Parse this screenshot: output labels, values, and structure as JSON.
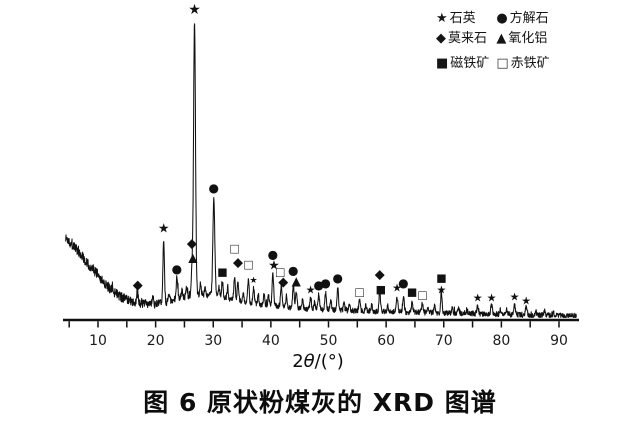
{
  "figure": {
    "caption": "图 6  原状粉煤灰的 XRD 图谱",
    "background_color": "#ffffff",
    "ink_color": "#111111"
  },
  "legend": {
    "position": "top-right",
    "items": [
      {
        "id": "quartz",
        "symbol": "★",
        "label": "石英"
      },
      {
        "id": "calcite",
        "symbol": "●",
        "label": "方解石"
      },
      {
        "id": "mullite",
        "symbol": "◆",
        "label": "莫来石"
      },
      {
        "id": "alumina",
        "symbol": "▲",
        "label": "氧化铝"
      },
      {
        "id": "magnetite",
        "symbol": "■",
        "label": "磁铁矿"
      },
      {
        "id": "hematite",
        "symbol": "□",
        "label": "赤铁矿"
      }
    ]
  },
  "chart_data": {
    "type": "line",
    "title": "",
    "xlabel": "2θ/(°)",
    "ylabel": "",
    "x_range": [
      5,
      90
    ],
    "x_ticks_labeled": [
      10,
      20,
      30,
      40,
      50,
      60,
      70,
      80,
      90
    ],
    "x_minor_tick_step": 5,
    "ylim": [
      0,
      105
    ],
    "grid": false,
    "legend_position": "top-right",
    "phases": [
      {
        "symbol": "★",
        "mineral": "石英"
      },
      {
        "symbol": "●",
        "mineral": "方解石"
      },
      {
        "symbol": "◆",
        "mineral": "莫来石"
      },
      {
        "symbol": "▲",
        "mineral": "氧化铝"
      },
      {
        "symbol": "■",
        "mineral": "磁铁矿"
      },
      {
        "symbol": "□",
        "mineral": "赤铁矿"
      }
    ],
    "baseline_points": [
      [
        4.4,
        27
      ],
      [
        5,
        26
      ],
      [
        6.5,
        23
      ],
      [
        8,
        19
      ],
      [
        10,
        14.5
      ],
      [
        12,
        10
      ],
      [
        14,
        7
      ],
      [
        16,
        5.5
      ],
      [
        18,
        4.6
      ],
      [
        20,
        4.6
      ],
      [
        22,
        5.4
      ],
      [
        24,
        6.6
      ],
      [
        26,
        7.6
      ],
      [
        28,
        8.0
      ],
      [
        30,
        7.6
      ],
      [
        32,
        6.8
      ],
      [
        34,
        6.0
      ],
      [
        36,
        5.2
      ],
      [
        38,
        4.6
      ],
      [
        40,
        4.2
      ],
      [
        43,
        3.6
      ],
      [
        46,
        3.2
      ],
      [
        50,
        2.8
      ],
      [
        54,
        2.5
      ],
      [
        58,
        2.3
      ],
      [
        62,
        2.1
      ],
      [
        66,
        1.9
      ],
      [
        70,
        1.7
      ],
      [
        75,
        1.5
      ],
      [
        80,
        1.3
      ],
      [
        85,
        1.0
      ],
      [
        90,
        0.8
      ],
      [
        93,
        0.7
      ]
    ],
    "noise": {
      "seed": 1337,
      "amplitude_low_angle": 1.85,
      "amplitude_high_angle": 0.9
    },
    "peaks": [
      {
        "two_theta": 16.9,
        "intensity": 8,
        "phase": "莫来石",
        "markers": [
          {
            "symbol": "◆",
            "height": 11
          }
        ]
      },
      {
        "two_theta": 21.4,
        "intensity": 27,
        "phase": "石英",
        "markers": [
          {
            "symbol": "★",
            "height": 30
          }
        ]
      },
      {
        "two_theta": 23.7,
        "intensity": 13.5,
        "phase": "方解石",
        "markers": [
          {
            "symbol": "●",
            "height": 16.5
          }
        ]
      },
      {
        "two_theta": 26.3,
        "intensity": 16,
        "phase": "莫来石/氧化铝",
        "markers": [
          {
            "symbol": "◆",
            "height": 25
          },
          {
            "symbol": "▲",
            "height": 20.5,
            "dx": 1
          }
        ]
      },
      {
        "two_theta": 26.75,
        "intensity": 100,
        "phase": "石英",
        "markers": [
          {
            "symbol": "★",
            "height": 104,
            "size": 14
          }
        ]
      },
      {
        "two_theta": 30.1,
        "intensity": 40.5,
        "phase": "方解石",
        "markers": [
          {
            "symbol": "●",
            "height": 44
          }
        ]
      },
      {
        "two_theta": 31.6,
        "intensity": 12,
        "phase": "磁铁矿",
        "markers": [
          {
            "symbol": "■",
            "height": 15.5
          }
        ]
      },
      {
        "two_theta": 33.7,
        "intensity": 13.5,
        "phase": "赤铁矿",
        "markers": [
          {
            "symbol": "□",
            "height": 23.5
          }
        ]
      },
      {
        "two_theta": 34.3,
        "intensity": 12,
        "phase": "莫来石",
        "markers": [
          {
            "symbol": "◆",
            "height": 18.5
          }
        ]
      },
      {
        "two_theta": 36.1,
        "intensity": 13,
        "phase": "赤铁矿",
        "markers": [
          {
            "symbol": "□",
            "height": 18
          }
        ]
      },
      {
        "two_theta": 37.0,
        "intensity": 10,
        "phase": "石英",
        "markers": [
          {
            "symbol": "★",
            "height": 12.5,
            "size": 9
          }
        ]
      },
      {
        "two_theta": 40.35,
        "intensity": 15,
        "phase": "方解石/石英",
        "markers": [
          {
            "symbol": "●",
            "height": 21.5
          },
          {
            "symbol": "★",
            "height": 17.5,
            "dx": 1
          }
        ]
      },
      {
        "two_theta": 41.8,
        "intensity": 11,
        "phase": "赤铁矿/莫来石",
        "markers": [
          {
            "symbol": "□",
            "height": 15.5,
            "dx": -1
          },
          {
            "symbol": "◆",
            "height": 12,
            "dx": 2
          }
        ]
      },
      {
        "two_theta": 43.9,
        "intensity": 11.5,
        "phase": "方解石",
        "markers": [
          {
            "symbol": "●",
            "height": 16
          }
        ]
      },
      {
        "two_theta": 44.4,
        "intensity": 9,
        "phase": "氧化铝",
        "markers": [
          {
            "symbol": "▲",
            "height": 12.5
          }
        ]
      },
      {
        "two_theta": 46.9,
        "intensity": 7,
        "phase": "石英",
        "markers": [
          {
            "symbol": "★",
            "height": 9.5,
            "size": 11
          }
        ]
      },
      {
        "two_theta": 48.3,
        "intensity": 8,
        "phase": "方解石",
        "markers": [
          {
            "symbol": "●",
            "height": 11.2
          }
        ]
      },
      {
        "two_theta": 49.5,
        "intensity": 8.5,
        "phase": "方解石",
        "markers": [
          {
            "symbol": "●",
            "height": 11.8
          }
        ]
      },
      {
        "two_theta": 51.6,
        "intensity": 10,
        "phase": "方解石",
        "markers": [
          {
            "symbol": "●",
            "height": 13.5
          }
        ]
      },
      {
        "two_theta": 55.4,
        "intensity": 6,
        "phase": "赤铁矿",
        "markers": [
          {
            "symbol": "□",
            "height": 8.8
          }
        ]
      },
      {
        "two_theta": 58.9,
        "intensity": 9,
        "phase": "莫来石/磁铁矿",
        "markers": [
          {
            "symbol": "◆",
            "height": 14.5
          },
          {
            "symbol": "■",
            "height": 9.7,
            "dx": 1
          }
        ]
      },
      {
        "two_theta": 61.9,
        "intensity": 7,
        "phase": "石英",
        "markers": [
          {
            "symbol": "★",
            "height": 10.2,
            "size": 11
          }
        ]
      },
      {
        "two_theta": 63.0,
        "intensity": 7.5,
        "phase": "方解石",
        "markers": [
          {
            "symbol": "●",
            "height": 11.8
          }
        ]
      },
      {
        "two_theta": 64.5,
        "intensity": 5.5,
        "phase": "磁铁矿",
        "markers": [
          {
            "symbol": "■",
            "height": 8.8
          }
        ]
      },
      {
        "two_theta": 66.3,
        "intensity": 5,
        "phase": "赤铁矿",
        "markers": [
          {
            "symbol": "□",
            "height": 7.8
          }
        ]
      },
      {
        "two_theta": 69.6,
        "intensity": 8.5,
        "phase": "磁铁矿/石英",
        "markers": [
          {
            "symbol": "■",
            "height": 13.5
          },
          {
            "symbol": "★",
            "height": 9.5,
            "size": 11
          }
        ]
      },
      {
        "two_theta": 75.9,
        "intensity": 4.2,
        "phase": "石英",
        "markers": [
          {
            "symbol": "★",
            "height": 6.8,
            "size": 11
          }
        ]
      },
      {
        "two_theta": 78.3,
        "intensity": 4.2,
        "phase": "石英",
        "markers": [
          {
            "symbol": "★",
            "height": 6.8,
            "size": 11
          }
        ]
      },
      {
        "two_theta": 82.3,
        "intensity": 4.2,
        "phase": "石英",
        "markers": [
          {
            "symbol": "★",
            "height": 7.1,
            "size": 11
          }
        ]
      },
      {
        "two_theta": 84.3,
        "intensity": 3.6,
        "phase": "石英",
        "markers": [
          {
            "symbol": "★",
            "height": 5.7,
            "size": 11
          }
        ]
      }
    ],
    "minor_peaks": [
      [
        12.5,
        1.5
      ],
      [
        14.8,
        1.5
      ],
      [
        18.2,
        1.8
      ],
      [
        19.5,
        2.0
      ],
      [
        22.3,
        2.5
      ],
      [
        24.6,
        2.5
      ],
      [
        25.4,
        3.0
      ],
      [
        27.8,
        3.5
      ],
      [
        28.6,
        3.0
      ],
      [
        31.0,
        3.5
      ],
      [
        32.5,
        4.0
      ],
      [
        35.2,
        3.0
      ],
      [
        37.8,
        3.0
      ],
      [
        38.8,
        3.5
      ],
      [
        39.6,
        3.5
      ],
      [
        42.7,
        4.0
      ],
      [
        45.5,
        3.0
      ],
      [
        47.6,
        2.5
      ],
      [
        50.4,
        3.5
      ],
      [
        52.7,
        2.5
      ],
      [
        53.6,
        2.5
      ],
      [
        56.5,
        2.0
      ],
      [
        57.5,
        2.5
      ],
      [
        60.3,
        2.0
      ],
      [
        67.3,
        2.0
      ],
      [
        68.4,
        2.5
      ],
      [
        71.5,
        2.0
      ],
      [
        72.6,
        2.0
      ],
      [
        74.0,
        1.5
      ],
      [
        79.8,
        1.5
      ],
      [
        80.9,
        2.0
      ],
      [
        86.0,
        1.5
      ],
      [
        87.5,
        1.5
      ],
      [
        89.0,
        1.2
      ]
    ]
  }
}
